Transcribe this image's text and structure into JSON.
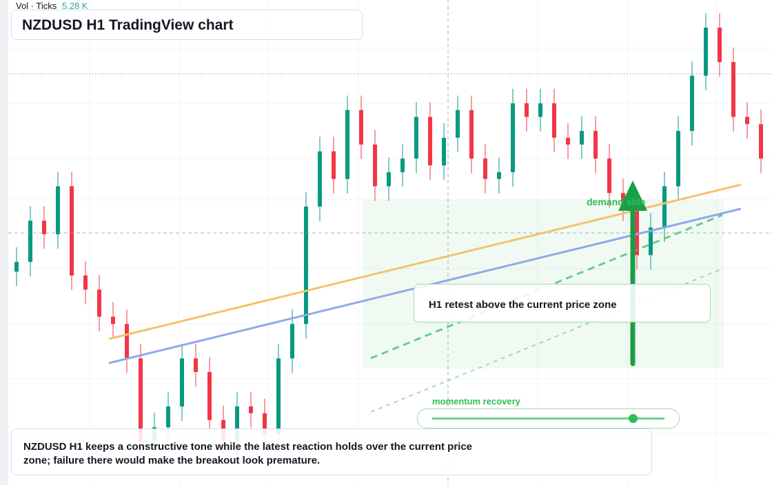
{
  "header": {
    "vol_label": "Vol · Ticks",
    "vol_value": "5.28 K",
    "title": "NZDUSD H1 TradingView chart"
  },
  "chart_data": {
    "type": "candlestick",
    "open": [
      44,
      46,
      54.5,
      51.7,
      61.6,
      43.2,
      40.3,
      34.7,
      33.2,
      26.1,
      9.1,
      11.9,
      16.2,
      26.1,
      23.3,
      13.4,
      9.1,
      16.2,
      14.8,
      10.5,
      26.1,
      33.2,
      57.4,
      68.8,
      63.1,
      77.3,
      70.2,
      61.6,
      64.5,
      67.3,
      75.9,
      65.9,
      71.6,
      77.3,
      67.3,
      63.1,
      64.5,
      78.7,
      75.9,
      78.7,
      71.6,
      70.2,
      73,
      67.3,
      60.2,
      57.4,
      47.4,
      53.1,
      61.6,
      73,
      84.4,
      94.3,
      87.2,
      75.9,
      74.4
    ],
    "high": [
      49,
      57.5,
      57.5,
      64.6,
      64.6,
      46.2,
      43.3,
      37.7,
      36.2,
      29.1,
      14.9,
      19.2,
      29.1,
      29.1,
      26.3,
      16.4,
      19.2,
      19.2,
      17.8,
      29.1,
      36.2,
      60.4,
      71.8,
      71.8,
      80.3,
      80.3,
      73.2,
      67.5,
      70.3,
      78.9,
      78.9,
      74.6,
      80.3,
      80.3,
      70.3,
      67.5,
      81.7,
      81.7,
      81.7,
      81.7,
      74.6,
      76,
      76,
      70.3,
      63.2,
      60.4,
      56.1,
      64.6,
      76,
      87.4,
      97.3,
      97.3,
      90.2,
      78.9,
      77.4
    ],
    "low": [
      41,
      43,
      48.7,
      48.7,
      40.2,
      37.3,
      31.7,
      30.2,
      23.1,
      6.1,
      6.1,
      8.9,
      13.2,
      20.3,
      10.4,
      6.1,
      6.1,
      11.8,
      7.5,
      7.5,
      23.1,
      30.2,
      54.4,
      60.1,
      60.1,
      67.2,
      58.6,
      58.6,
      61.5,
      64.3,
      62.9,
      62.9,
      68.6,
      64.3,
      60.1,
      60.1,
      61.5,
      72.9,
      72.9,
      68.6,
      67.2,
      67.2,
      64.3,
      57.2,
      54.4,
      44.4,
      44.4,
      50.1,
      58.6,
      70,
      81.4,
      84.2,
      72.9,
      71.4,
      64.3
    ],
    "close": [
      46,
      54.5,
      51.7,
      61.6,
      43.2,
      40.3,
      34.7,
      33.2,
      26.1,
      9.1,
      11.9,
      16.2,
      26.1,
      23.3,
      13.4,
      9.1,
      16.2,
      14.8,
      10.5,
      26.1,
      33.2,
      57.4,
      68.8,
      63.1,
      77.3,
      70.2,
      61.6,
      64.5,
      67.3,
      75.9,
      65.9,
      71.6,
      77.3,
      67.3,
      63.1,
      64.5,
      78.7,
      75.9,
      78.7,
      71.6,
      70.2,
      73,
      67.3,
      60.2,
      57.4,
      47.4,
      53.1,
      61.6,
      73,
      84.4,
      94.3,
      87.2,
      75.9,
      74.4,
      67.3
    ],
    "ylim": [
      0,
      100
    ],
    "up_color": "#089981",
    "down_color": "#f23645",
    "annotations": {
      "zone": "demand side",
      "callout": "H1 retest above the current price zone",
      "slider": "momentum recovery",
      "note": "NZDUSD H1 keeps a constructive tone while the latest reaction holds over the current price zone; failure there would make the breakout look premature."
    }
  }
}
